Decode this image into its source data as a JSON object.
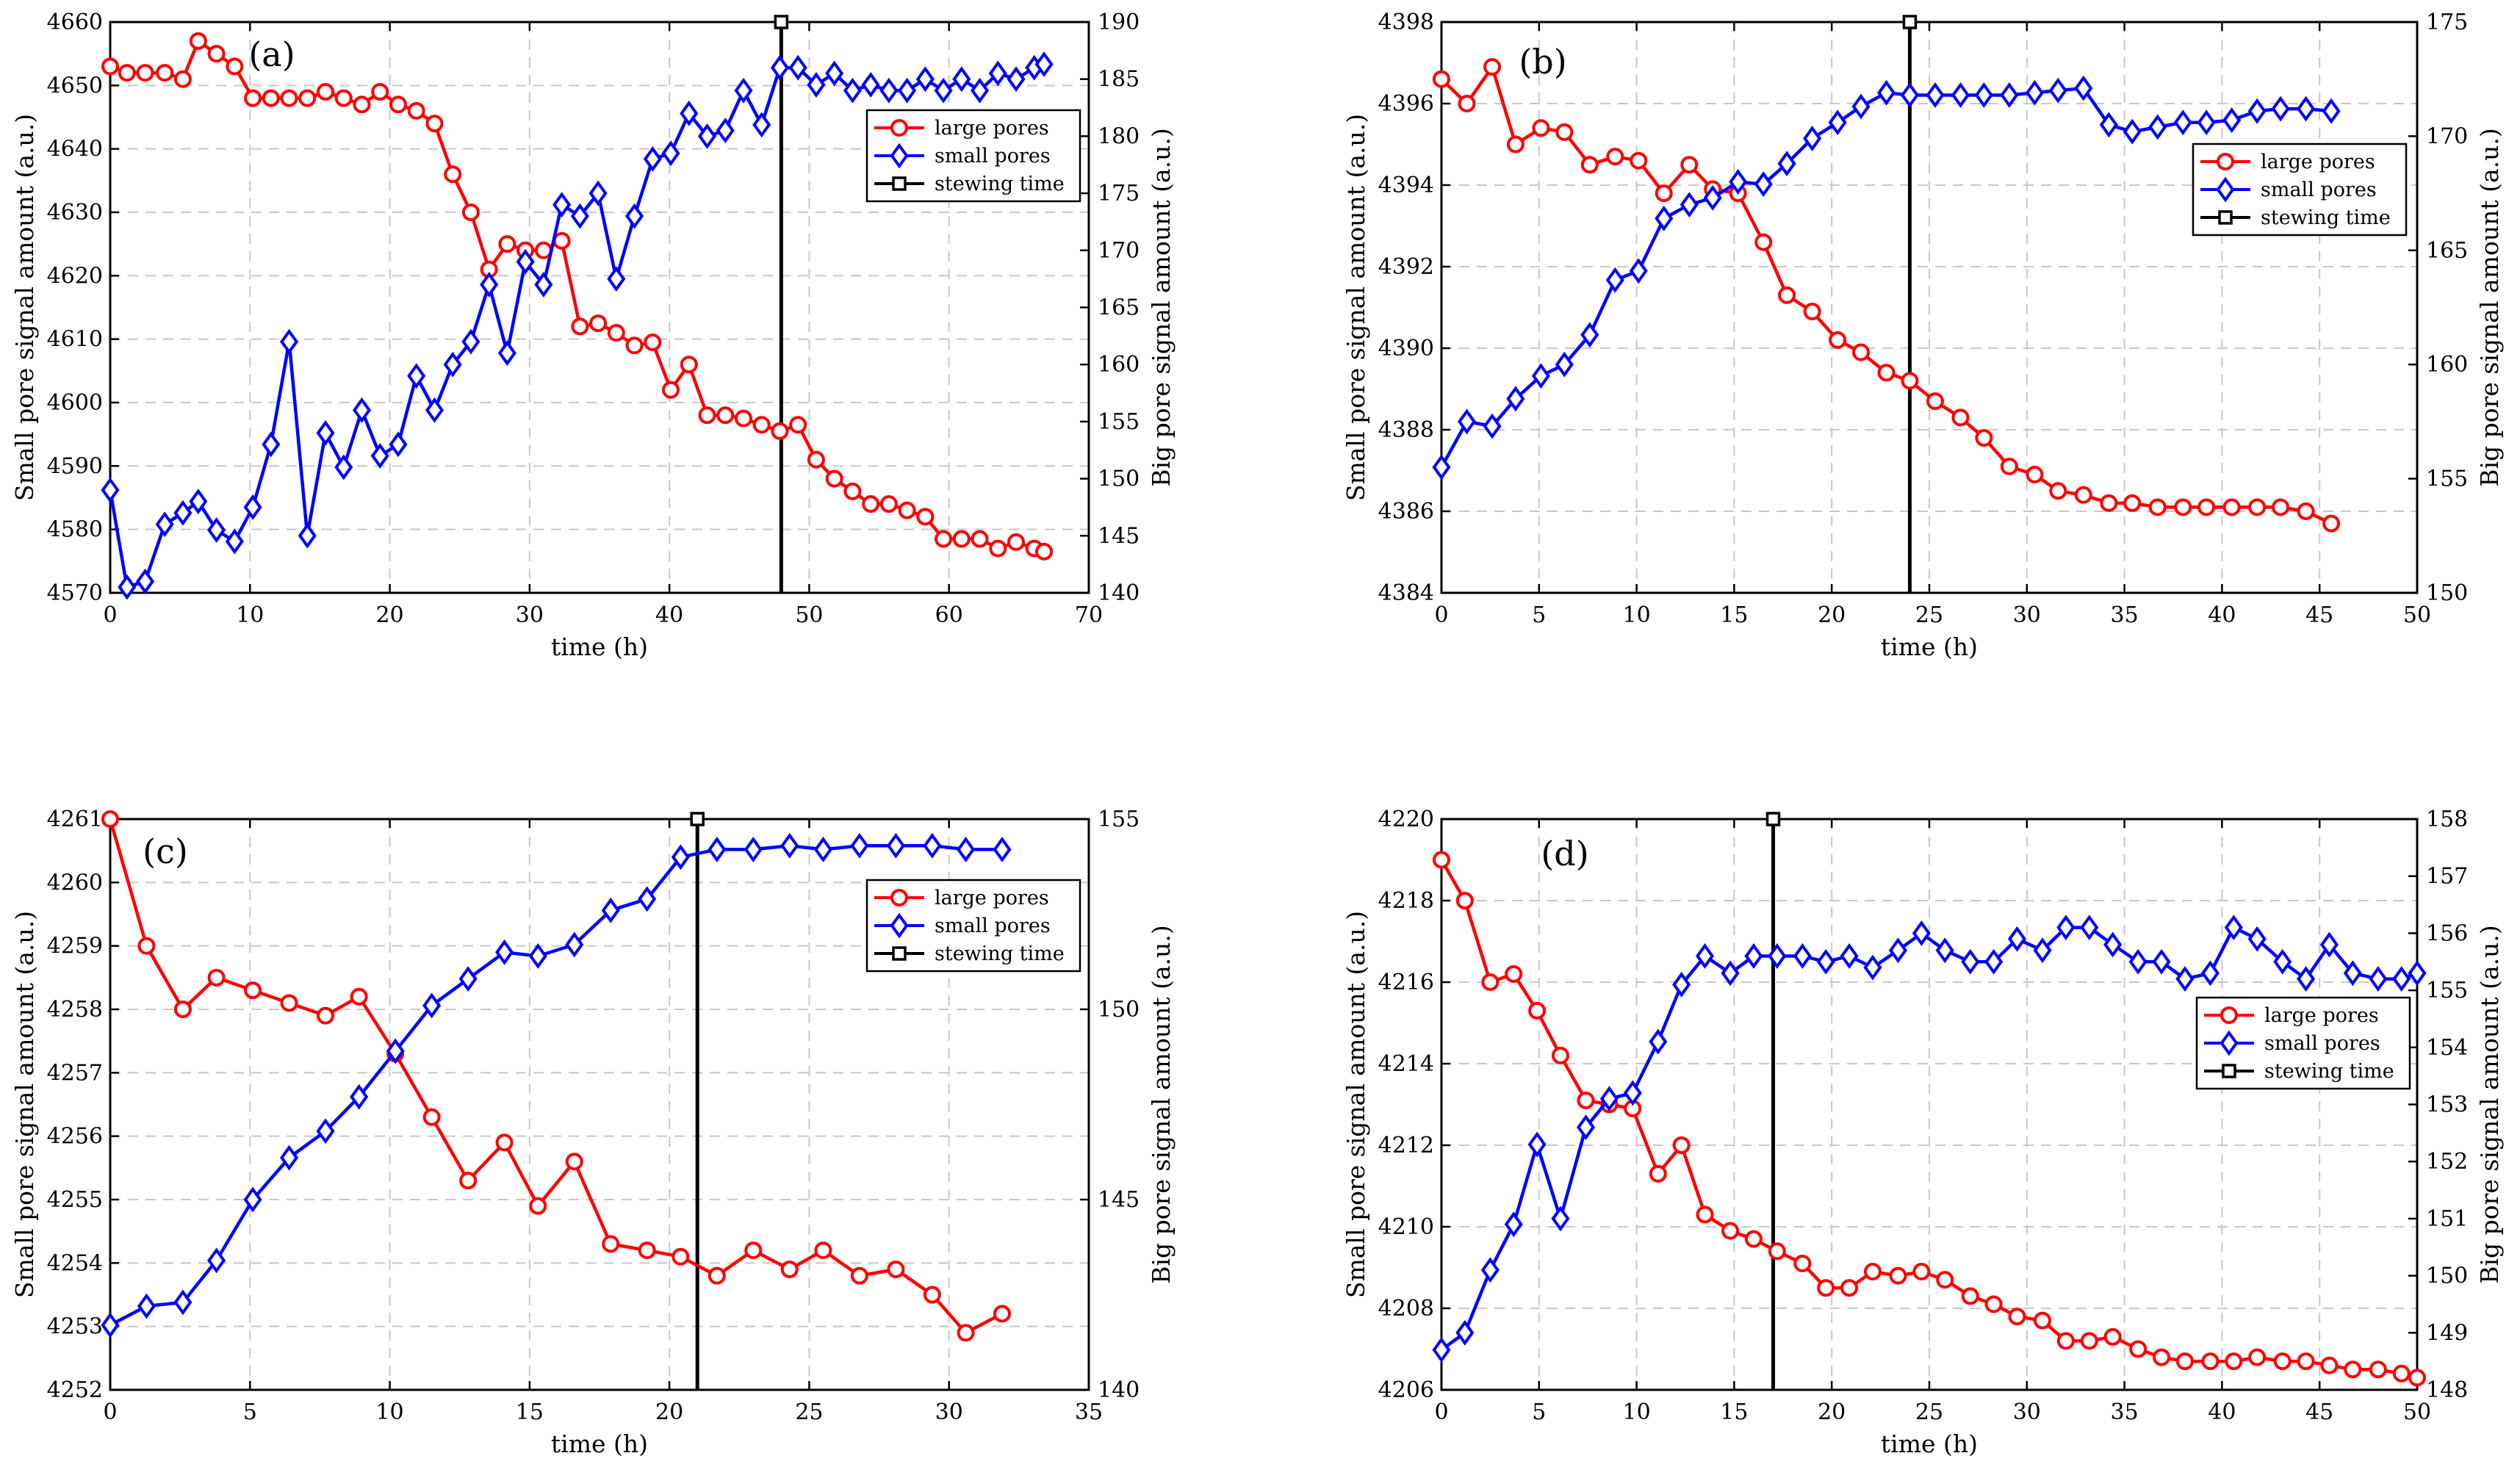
{
  "figure": {
    "colors": {
      "large": "#ff0000",
      "small": "#0000ff",
      "stewing": "#000000",
      "grid": "#c8c8c8"
    }
  },
  "chart_data": [
    {
      "type": "line",
      "panel": "(a)",
      "xlabel": "time (h)",
      "ylabel_left": "Small pore signal amount (a.u.)",
      "ylabel_right": "Big pore signal amount (a.u.)",
      "xlim": [
        0,
        70
      ],
      "xticks": [
        0,
        10,
        20,
        30,
        40,
        50,
        60,
        70
      ],
      "ylim_left": [
        4570,
        4660
      ],
      "yticks_left": [
        4570,
        4580,
        4590,
        4600,
        4610,
        4620,
        4630,
        4640,
        4650,
        4660
      ],
      "ylim_right": [
        140,
        190
      ],
      "yticks_right": [
        140,
        145,
        150,
        155,
        160,
        165,
        170,
        175,
        180,
        185,
        190
      ],
      "legend": [
        "large pores",
        "small pores",
        "stewing time"
      ],
      "legend_position": "top-right",
      "stewing_time": 48,
      "series": [
        {
          "name": "large pores",
          "axis": "left",
          "x": [
            0,
            1.2,
            2.5,
            3.9,
            5.2,
            6.3,
            7.6,
            8.9,
            10.2,
            11.5,
            12.8,
            14.1,
            15.4,
            16.7,
            18,
            19.3,
            20.6,
            21.9,
            23.2,
            24.5,
            25.8,
            27.1,
            28.4,
            29.7,
            31,
            32.3,
            33.6,
            34.9,
            36.2,
            37.5,
            38.8,
            40.1,
            41.4,
            42.7,
            44,
            45.3,
            46.6,
            47.9,
            49.2,
            50.5,
            51.8,
            53.1,
            54.4,
            55.7,
            57,
            58.3,
            59.6,
            60.9,
            62.2,
            63.5,
            64.8,
            66.1,
            66.8
          ],
          "y": [
            4653,
            4652,
            4652,
            4652,
            4651,
            4657,
            4655,
            4653,
            4648,
            4648,
            4648,
            4648,
            4649,
            4648,
            4647,
            4649,
            4647,
            4646,
            4644,
            4636,
            4630,
            4621,
            4625,
            4624,
            4624,
            4625.5,
            4612,
            4612.5,
            4611,
            4609,
            4609.5,
            4602,
            4606,
            4598,
            4598,
            4597.5,
            4596.5,
            4595.5,
            4596.5,
            4591,
            4588,
            4586,
            4584,
            4584,
            4583,
            4582,
            4578.5,
            4578.5,
            4578.5,
            4577,
            4578,
            4577,
            4576.5
          ]
        },
        {
          "name": "small pores",
          "axis": "right",
          "x": [
            0,
            1.2,
            2.5,
            3.9,
            5.2,
            6.3,
            7.6,
            8.9,
            10.2,
            11.5,
            12.8,
            14.1,
            15.4,
            16.7,
            18,
            19.3,
            20.6,
            21.9,
            23.2,
            24.5,
            25.8,
            27.1,
            28.4,
            29.7,
            31,
            32.3,
            33.6,
            34.9,
            36.2,
            37.5,
            38.8,
            40.1,
            41.4,
            42.7,
            44,
            45.3,
            46.6,
            47.9,
            49.2,
            50.5,
            51.8,
            53.1,
            54.4,
            55.7,
            57,
            58.3,
            59.6,
            60.9,
            62.2,
            63.5,
            64.8,
            66.1,
            66.8
          ],
          "y": [
            149,
            140.5,
            141,
            146,
            147,
            148,
            145.5,
            144.5,
            147.5,
            153,
            162,
            145,
            154,
            151,
            156,
            152,
            153,
            159,
            156,
            160,
            162,
            167,
            161,
            169,
            167,
            174,
            173,
            175,
            167.5,
            173,
            178,
            178.5,
            182,
            180,
            180.5,
            184,
            181,
            186,
            186,
            184.5,
            185.5,
            184,
            184.5,
            184,
            184,
            185,
            184,
            185,
            184,
            185.5,
            185,
            186,
            186.3
          ]
        }
      ]
    },
    {
      "type": "line",
      "panel": "(b)",
      "xlabel": "time (h)",
      "ylabel_left": "Small pore signal amount (a.u.)",
      "ylabel_right": "Big pore signal amount (a.u.)",
      "xlim": [
        0,
        50
      ],
      "xticks": [
        0,
        5,
        10,
        15,
        20,
        25,
        30,
        35,
        40,
        45,
        50
      ],
      "ylim_left": [
        4384,
        4398
      ],
      "yticks_left": [
        4384,
        4386,
        4388,
        4390,
        4392,
        4394,
        4396,
        4398
      ],
      "ylim_right": [
        150,
        175
      ],
      "yticks_right": [
        150,
        155,
        160,
        165,
        170,
        175
      ],
      "legend": [
        "large pores",
        "small pores",
        "stewing time"
      ],
      "legend_position": "top-right",
      "stewing_time": 24,
      "series": [
        {
          "name": "large pores",
          "axis": "left",
          "x": [
            0,
            1.3,
            2.6,
            3.8,
            5.1,
            6.3,
            7.6,
            8.9,
            10.1,
            11.4,
            12.7,
            13.9,
            15.2,
            16.5,
            17.7,
            19,
            20.3,
            21.5,
            22.8,
            24,
            25.3,
            26.6,
            27.8,
            29.1,
            30.4,
            31.6,
            32.9,
            34.2,
            35.4,
            36.7,
            38,
            39.2,
            40.5,
            41.8,
            43,
            44.3,
            45.6
          ],
          "y": [
            4396.6,
            4396,
            4396.9,
            4395,
            4395.4,
            4395.3,
            4394.5,
            4394.7,
            4394.6,
            4393.8,
            4394.5,
            4393.9,
            4393.8,
            4392.6,
            4391.3,
            4390.9,
            4390.2,
            4389.9,
            4389.4,
            4389.2,
            4388.7,
            4388.3,
            4387.8,
            4387.1,
            4386.9,
            4386.5,
            4386.4,
            4386.2,
            4386.2,
            4386.1,
            4386.1,
            4386.1,
            4386.1,
            4386.1,
            4386.1,
            4386,
            4385.7
          ]
        },
        {
          "name": "small pores",
          "axis": "right",
          "x": [
            0,
            1.3,
            2.6,
            3.8,
            5.1,
            6.3,
            7.6,
            8.9,
            10.1,
            11.4,
            12.7,
            13.9,
            15.2,
            16.5,
            17.7,
            19,
            20.3,
            21.5,
            22.8,
            24,
            25.3,
            26.6,
            27.8,
            29.1,
            30.4,
            31.6,
            32.9,
            34.2,
            35.4,
            36.7,
            38,
            39.2,
            40.5,
            41.8,
            43,
            44.3,
            45.6
          ],
          "y": [
            155.5,
            157.5,
            157.3,
            158.5,
            159.5,
            160,
            161.3,
            163.7,
            164.1,
            166.4,
            167,
            167.3,
            168,
            167.9,
            168.8,
            169.9,
            170.6,
            171.3,
            171.9,
            171.8,
            171.8,
            171.8,
            171.8,
            171.8,
            171.9,
            172,
            172.1,
            170.5,
            170.2,
            170.4,
            170.6,
            170.6,
            170.7,
            171.1,
            171.2,
            171.2,
            171.1
          ]
        }
      ]
    },
    {
      "type": "line",
      "panel": "(c)",
      "xlabel": "time (h)",
      "ylabel_left": "Small pore signal amount (a.u.)",
      "ylabel_right": "Big pore signal amount (a.u.)",
      "xlim": [
        0,
        35
      ],
      "xticks": [
        0,
        5,
        10,
        15,
        20,
        25,
        30,
        35
      ],
      "ylim_left": [
        4252,
        4261
      ],
      "yticks_left": [
        4252,
        4253,
        4254,
        4255,
        4256,
        4257,
        4258,
        4259,
        4260,
        4261
      ],
      "ylim_right": [
        140,
        155
      ],
      "yticks_right": [
        140,
        145,
        150,
        155
      ],
      "legend": [
        "large pores",
        "small pores",
        "stewing time"
      ],
      "legend_position": "top-right",
      "stewing_time": 21,
      "series": [
        {
          "name": "large pores",
          "axis": "left",
          "x": [
            0,
            1.3,
            2.6,
            3.8,
            5.1,
            6.4,
            7.7,
            8.9,
            10.2,
            11.5,
            12.8,
            14.1,
            15.3,
            16.6,
            17.9,
            19.2,
            20.4,
            21.7,
            23,
            24.3,
            25.5,
            26.8,
            28.1,
            29.4,
            30.6,
            31.9
          ],
          "y": [
            4261,
            4259,
            4258,
            4258.5,
            4258.3,
            4258.1,
            4257.9,
            4258.2,
            4257.3,
            4256.3,
            4255.3,
            4255.9,
            4254.9,
            4255.6,
            4254.3,
            4254.2,
            4254.1,
            4253.8,
            4254.2,
            4253.9,
            4254.2,
            4253.8,
            4253.9,
            4253.5,
            4252.9,
            4253.2
          ]
        },
        {
          "name": "small pores",
          "axis": "right",
          "x": [
            0,
            1.3,
            2.6,
            3.8,
            5.1,
            6.4,
            7.7,
            8.9,
            10.2,
            11.5,
            12.8,
            14.1,
            15.3,
            16.6,
            17.9,
            19.2,
            20.4,
            21.7,
            23,
            24.3,
            25.5,
            26.8,
            28.1,
            29.4,
            30.6,
            31.9
          ],
          "y": [
            141.7,
            142.2,
            142.3,
            143.4,
            145,
            146.1,
            146.8,
            147.7,
            148.9,
            150.1,
            150.8,
            151.5,
            151.4,
            151.7,
            152.6,
            152.9,
            154,
            154.2,
            154.2,
            154.3,
            154.2,
            154.3,
            154.3,
            154.3,
            154.2,
            154.2
          ]
        }
      ]
    },
    {
      "type": "line",
      "panel": "(d)",
      "xlabel": "time (h)",
      "ylabel_left": "Small pore signal amount (a.u.)",
      "ylabel_right": "Big pore signal amount (a.u.)",
      "xlim": [
        0,
        50
      ],
      "xticks": [
        0,
        5,
        10,
        15,
        20,
        25,
        30,
        35,
        40,
        45,
        50
      ],
      "ylim_left": [
        4206,
        4220
      ],
      "yticks_left": [
        4206,
        4208,
        4210,
        4212,
        4214,
        4216,
        4218,
        4220
      ],
      "ylim_right": [
        148,
        158
      ],
      "yticks_right": [
        148,
        149,
        150,
        151,
        152,
        153,
        154,
        155,
        156,
        157,
        158
      ],
      "legend": [
        "large pores",
        "small pores",
        "stewing time"
      ],
      "legend_position": "right",
      "stewing_time": 17,
      "series": [
        {
          "name": "large pores",
          "axis": "left",
          "x": [
            0,
            1.2,
            2.5,
            3.7,
            4.9,
            6.1,
            7.4,
            8.6,
            9.8,
            11.1,
            12.3,
            13.5,
            14.8,
            16,
            17.2,
            18.5,
            19.7,
            20.9,
            22.1,
            23.4,
            24.6,
            25.8,
            27.1,
            28.3,
            29.5,
            30.8,
            32,
            33.2,
            34.4,
            35.7,
            36.9,
            38.1,
            39.4,
            40.6,
            41.8,
            43.1,
            44.3,
            45.5,
            46.7,
            48,
            49.2,
            50
          ],
          "y": [
            4219,
            4218,
            4216,
            4216.2,
            4215.3,
            4214.2,
            4213.1,
            4213,
            4212.9,
            4211.3,
            4212,
            4210.3,
            4209.9,
            4209.7,
            4209.4,
            4209.1,
            4208.5,
            4208.5,
            4208.9,
            4208.8,
            4208.9,
            4208.7,
            4208.3,
            4208.1,
            4207.8,
            4207.7,
            4207.2,
            4207.2,
            4207.3,
            4207,
            4206.8,
            4206.7,
            4206.7,
            4206.7,
            4206.8,
            4206.7,
            4206.7,
            4206.6,
            4206.5,
            4206.5,
            4206.4,
            4206.3
          ]
        },
        {
          "name": "small pores",
          "axis": "right",
          "x": [
            0,
            1.2,
            2.5,
            3.7,
            4.9,
            6.1,
            7.4,
            8.6,
            9.8,
            11.1,
            12.3,
            13.5,
            14.8,
            16,
            17.2,
            18.5,
            19.7,
            20.9,
            22.1,
            23.4,
            24.6,
            25.8,
            27.1,
            28.3,
            29.5,
            30.8,
            32,
            33.2,
            34.4,
            35.7,
            36.9,
            38.1,
            39.4,
            40.6,
            41.8,
            43.1,
            44.3,
            45.5,
            46.7,
            48,
            49.2,
            50
          ],
          "y": [
            148.7,
            149,
            150.1,
            150.9,
            152.3,
            151,
            152.6,
            153.1,
            153.2,
            154.1,
            155.1,
            155.6,
            155.3,
            155.6,
            155.6,
            155.6,
            155.5,
            155.6,
            155.4,
            155.7,
            156,
            155.7,
            155.5,
            155.5,
            155.9,
            155.7,
            156.1,
            156.1,
            155.8,
            155.5,
            155.5,
            155.2,
            155.3,
            156.1,
            155.9,
            155.5,
            155.2,
            155.8,
            155.3,
            155.2,
            155.2,
            155.3
          ]
        }
      ]
    }
  ]
}
